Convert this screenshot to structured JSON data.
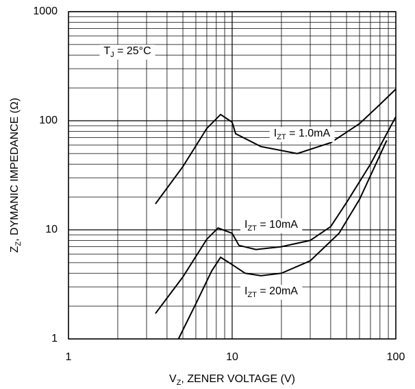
{
  "chart_data": {
    "type": "line",
    "xlabel": {
      "main": "V",
      "sub": "Z",
      "rest": ", ZENER VOLTAGE (V)"
    },
    "ylabel": {
      "main": "Z",
      "sub": "Z",
      "rest": ", DYMANIC IMPEDANCE (Ω)"
    },
    "annotations": [
      {
        "main": "T",
        "sub": "J",
        "rest": " = 25°C"
      }
    ],
    "xscale": "log",
    "yscale": "log",
    "xlim": [
      1,
      100
    ],
    "ylim": [
      1,
      1000
    ],
    "xticks": [
      1,
      10,
      100
    ],
    "yticks": [
      1,
      10,
      100,
      1000
    ],
    "grid": true,
    "minor_grid": true,
    "series": [
      {
        "name": {
          "main": "I",
          "sub": "ZT",
          "rest": " = 1.0mA"
        },
        "color": "#000000",
        "x": [
          3.4,
          5,
          7,
          8.5,
          10,
          10.5,
          15,
          25,
          40,
          60,
          80,
          100
        ],
        "values": [
          17.3,
          38,
          85,
          114,
          97,
          76,
          58,
          50,
          63,
          94,
          141,
          195
        ]
      },
      {
        "name": {
          "main": "I",
          "sub": "ZT",
          "rest": " = 10mA"
        },
        "color": "#000000",
        "x": [
          3.4,
          5,
          7,
          8.2,
          10,
          11,
          14,
          20,
          30,
          40,
          50,
          70,
          100
        ],
        "values": [
          1.71,
          3.7,
          8.2,
          10.4,
          9.3,
          7.2,
          6.6,
          7.0,
          8.0,
          10.7,
          17.8,
          40,
          109
        ]
      },
      {
        "name": {
          "main": "I",
          "sub": "ZT",
          "rest": " = 20mA"
        },
        "color": "#000000",
        "x": [
          4.7,
          6,
          7.5,
          8.5,
          10,
          12,
          15,
          20,
          30,
          45,
          60,
          88
        ],
        "values": [
          1.0,
          2.1,
          4.2,
          5.6,
          4.8,
          4.0,
          3.8,
          4.0,
          5.2,
          9.3,
          19,
          66
        ]
      }
    ]
  }
}
